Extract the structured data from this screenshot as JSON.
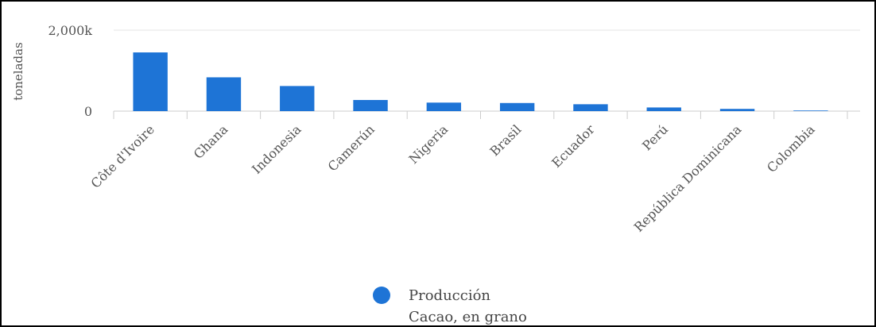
{
  "chart_data": {
    "type": "bar",
    "ylabel": "toneladas",
    "ylim": [
      0,
      2000
    ],
    "y_ticks": [
      {
        "value": 0,
        "label": "0"
      },
      {
        "value": 2000,
        "label": "2,000k"
      }
    ],
    "categories": [
      "Côte d'Ivoire",
      "Ghana",
      "Indonesia",
      "Camerún",
      "Nigeria",
      "Brasil",
      "Ecuador",
      "Perú",
      "República Dominicana",
      "Colombia"
    ],
    "series": [
      {
        "name": "Producción",
        "subtitle": "Cacao, en grano",
        "color": "#1e74d6",
        "values": [
          1450,
          835,
          620,
          275,
          210,
          200,
          170,
          90,
          55,
          15
        ]
      }
    ],
    "grid": true,
    "legend_position": "bottom"
  }
}
